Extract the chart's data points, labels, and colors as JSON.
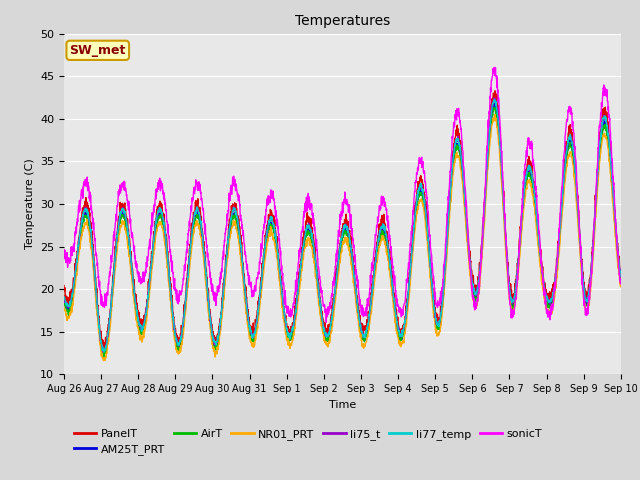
{
  "title": "Temperatures",
  "xlabel": "Time",
  "ylabel": "Temperature (C)",
  "ylim": [
    10,
    50
  ],
  "n_days": 15,
  "tick_labels": [
    "Aug 26",
    "Aug 27",
    "Aug 28",
    "Aug 29",
    "Aug 30",
    "Aug 31",
    "Sep 1",
    "Sep 2",
    "Sep 3",
    "Sep 4",
    "Sep 5",
    "Sep 6",
    "Sep 7",
    "Sep 8",
    "Sep 9",
    "Sep 10"
  ],
  "series_colors": {
    "PanelT": "#dd0000",
    "AM25T_PRT": "#0000dd",
    "AirT": "#00bb00",
    "NR01_PRT": "#ffaa00",
    "li75_t": "#9900cc",
    "li77_temp": "#00cccc",
    "sonicT": "#ff00ff"
  },
  "series_order": [
    "PanelT",
    "AM25T_PRT",
    "AirT",
    "NR01_PRT",
    "li75_t",
    "li77_temp",
    "sonicT"
  ],
  "legend_row1": [
    "PanelT",
    "AM25T_PRT",
    "AirT",
    "NR01_PRT",
    "li75_t",
    "li77_temp"
  ],
  "legend_row2": [
    "sonicT"
  ],
  "lw": 1.0,
  "annotation_text": "SW_met",
  "fig_bg": "#d8d8d8",
  "plot_bg": "#e8e8e8",
  "grid_color": "#ffffff",
  "annotation_fc": "#ffffbb",
  "annotation_ec": "#cc9900",
  "annotation_tc": "#880000"
}
